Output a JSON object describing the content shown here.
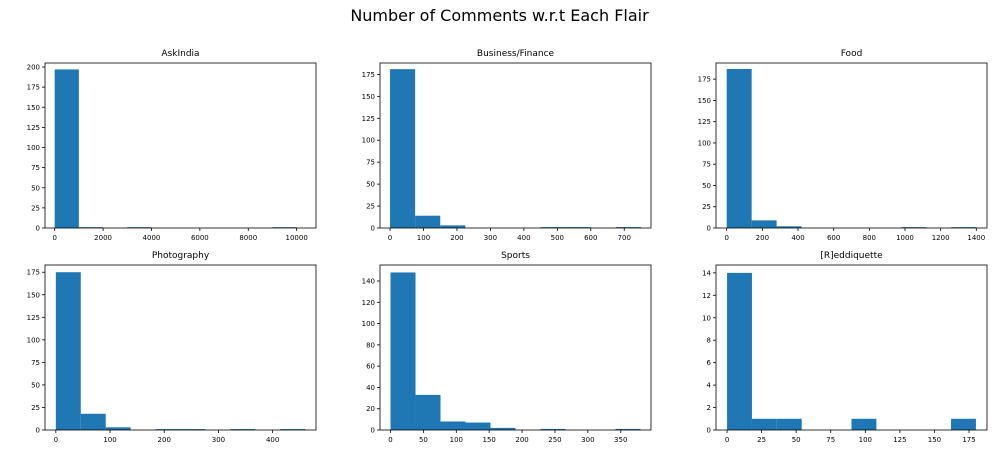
{
  "figure": {
    "title": "Number of Comments w.r.t Each Flair",
    "bar_color": "#1f77b4"
  },
  "chart_data": [
    {
      "type": "bar",
      "title": "AskIndia",
      "bins": [
        [
          0,
          1000
        ],
        [
          1000,
          2000
        ],
        [
          2000,
          3000
        ],
        [
          3000,
          4000
        ],
        [
          4000,
          5000
        ],
        [
          5000,
          6000
        ],
        [
          6000,
          7000
        ],
        [
          7000,
          8000
        ],
        [
          8000,
          9000
        ],
        [
          9000,
          10000
        ]
      ],
      "values": [
        197,
        1,
        0,
        1,
        0,
        0,
        0,
        0,
        0,
        1
      ],
      "xlim": [
        -400,
        10800
      ],
      "ylim": [
        0,
        205
      ],
      "xticks": [
        0,
        2000,
        4000,
        6000,
        8000,
        10000
      ],
      "yticks": [
        0,
        25,
        50,
        75,
        100,
        125,
        150,
        175,
        200
      ],
      "xlabel": "",
      "ylabel": ""
    },
    {
      "type": "bar",
      "title": "Business/Finance",
      "bins": [
        [
          0,
          75
        ],
        [
          75,
          150
        ],
        [
          150,
          225
        ],
        [
          225,
          300
        ],
        [
          300,
          375
        ],
        [
          375,
          450
        ],
        [
          450,
          525
        ],
        [
          525,
          600
        ],
        [
          600,
          675
        ],
        [
          675,
          750
        ]
      ],
      "values": [
        181,
        14,
        3,
        0,
        0,
        0,
        1,
        1,
        0,
        1
      ],
      "xlim": [
        -30,
        780
      ],
      "ylim": [
        0,
        188
      ],
      "xticks": [
        0,
        100,
        200,
        300,
        400,
        500,
        600,
        700
      ],
      "yticks": [
        0,
        25,
        50,
        75,
        100,
        125,
        150,
        175
      ],
      "xlabel": "",
      "ylabel": ""
    },
    {
      "type": "bar",
      "title": "Food",
      "bins": [
        [
          0,
          140
        ],
        [
          140,
          280
        ],
        [
          280,
          420
        ],
        [
          420,
          560
        ],
        [
          560,
          700
        ],
        [
          700,
          840
        ],
        [
          840,
          980
        ],
        [
          980,
          1120
        ],
        [
          1120,
          1260
        ],
        [
          1260,
          1400
        ]
      ],
      "values": [
        187,
        9,
        2,
        0,
        0,
        0,
        0,
        1,
        0,
        1
      ],
      "xlim": [
        -60,
        1460
      ],
      "ylim": [
        0,
        194
      ],
      "xticks": [
        0,
        200,
        400,
        600,
        800,
        1000,
        1200,
        1400
      ],
      "yticks": [
        0,
        25,
        50,
        75,
        100,
        125,
        150,
        175
      ],
      "xlabel": "",
      "ylabel": ""
    },
    {
      "type": "bar",
      "title": "Photography",
      "bins": [
        [
          0,
          46
        ],
        [
          46,
          92
        ],
        [
          92,
          138
        ],
        [
          138,
          184
        ],
        [
          184,
          230
        ],
        [
          230,
          276
        ],
        [
          276,
          322
        ],
        [
          322,
          368
        ],
        [
          368,
          414
        ],
        [
          414,
          460
        ]
      ],
      "values": [
        175,
        18,
        3,
        0,
        1,
        1,
        0,
        1,
        0,
        1
      ],
      "xlim": [
        -20,
        480
      ],
      "ylim": [
        0,
        183
      ],
      "xticks": [
        0,
        100,
        200,
        300,
        400
      ],
      "yticks": [
        0,
        25,
        50,
        75,
        100,
        125,
        150,
        175
      ],
      "xlabel": "",
      "ylabel": ""
    },
    {
      "type": "bar",
      "title": "Sports",
      "bins": [
        [
          0,
          38
        ],
        [
          38,
          76
        ],
        [
          76,
          114
        ],
        [
          114,
          152
        ],
        [
          152,
          190
        ],
        [
          190,
          228
        ],
        [
          228,
          266
        ],
        [
          266,
          304
        ],
        [
          304,
          342
        ],
        [
          342,
          380
        ]
      ],
      "values": [
        148,
        33,
        8,
        7,
        2,
        0,
        1,
        0,
        0,
        1
      ],
      "xlim": [
        -16,
        396
      ],
      "ylim": [
        0,
        155
      ],
      "xticks": [
        0,
        50,
        100,
        150,
        200,
        250,
        300,
        350
      ],
      "yticks": [
        0,
        20,
        40,
        60,
        80,
        100,
        120,
        140
      ],
      "xlabel": "",
      "ylabel": ""
    },
    {
      "type": "bar",
      "title": "[R]eddiquette",
      "bins": [
        [
          0,
          18
        ],
        [
          18,
          36
        ],
        [
          36,
          54
        ],
        [
          54,
          72
        ],
        [
          72,
          90
        ],
        [
          90,
          108
        ],
        [
          108,
          126
        ],
        [
          126,
          144
        ],
        [
          144,
          162
        ],
        [
          162,
          180
        ]
      ],
      "values": [
        14,
        1,
        1,
        0,
        0,
        1,
        0,
        0,
        0,
        1
      ],
      "xlim": [
        -8,
        188
      ],
      "ylim": [
        0,
        14.7
      ],
      "xticks": [
        0,
        25,
        50,
        75,
        100,
        125,
        150,
        175
      ],
      "yticks": [
        0,
        2,
        4,
        6,
        8,
        10,
        12,
        14
      ],
      "xlabel": "",
      "ylabel": ""
    }
  ]
}
